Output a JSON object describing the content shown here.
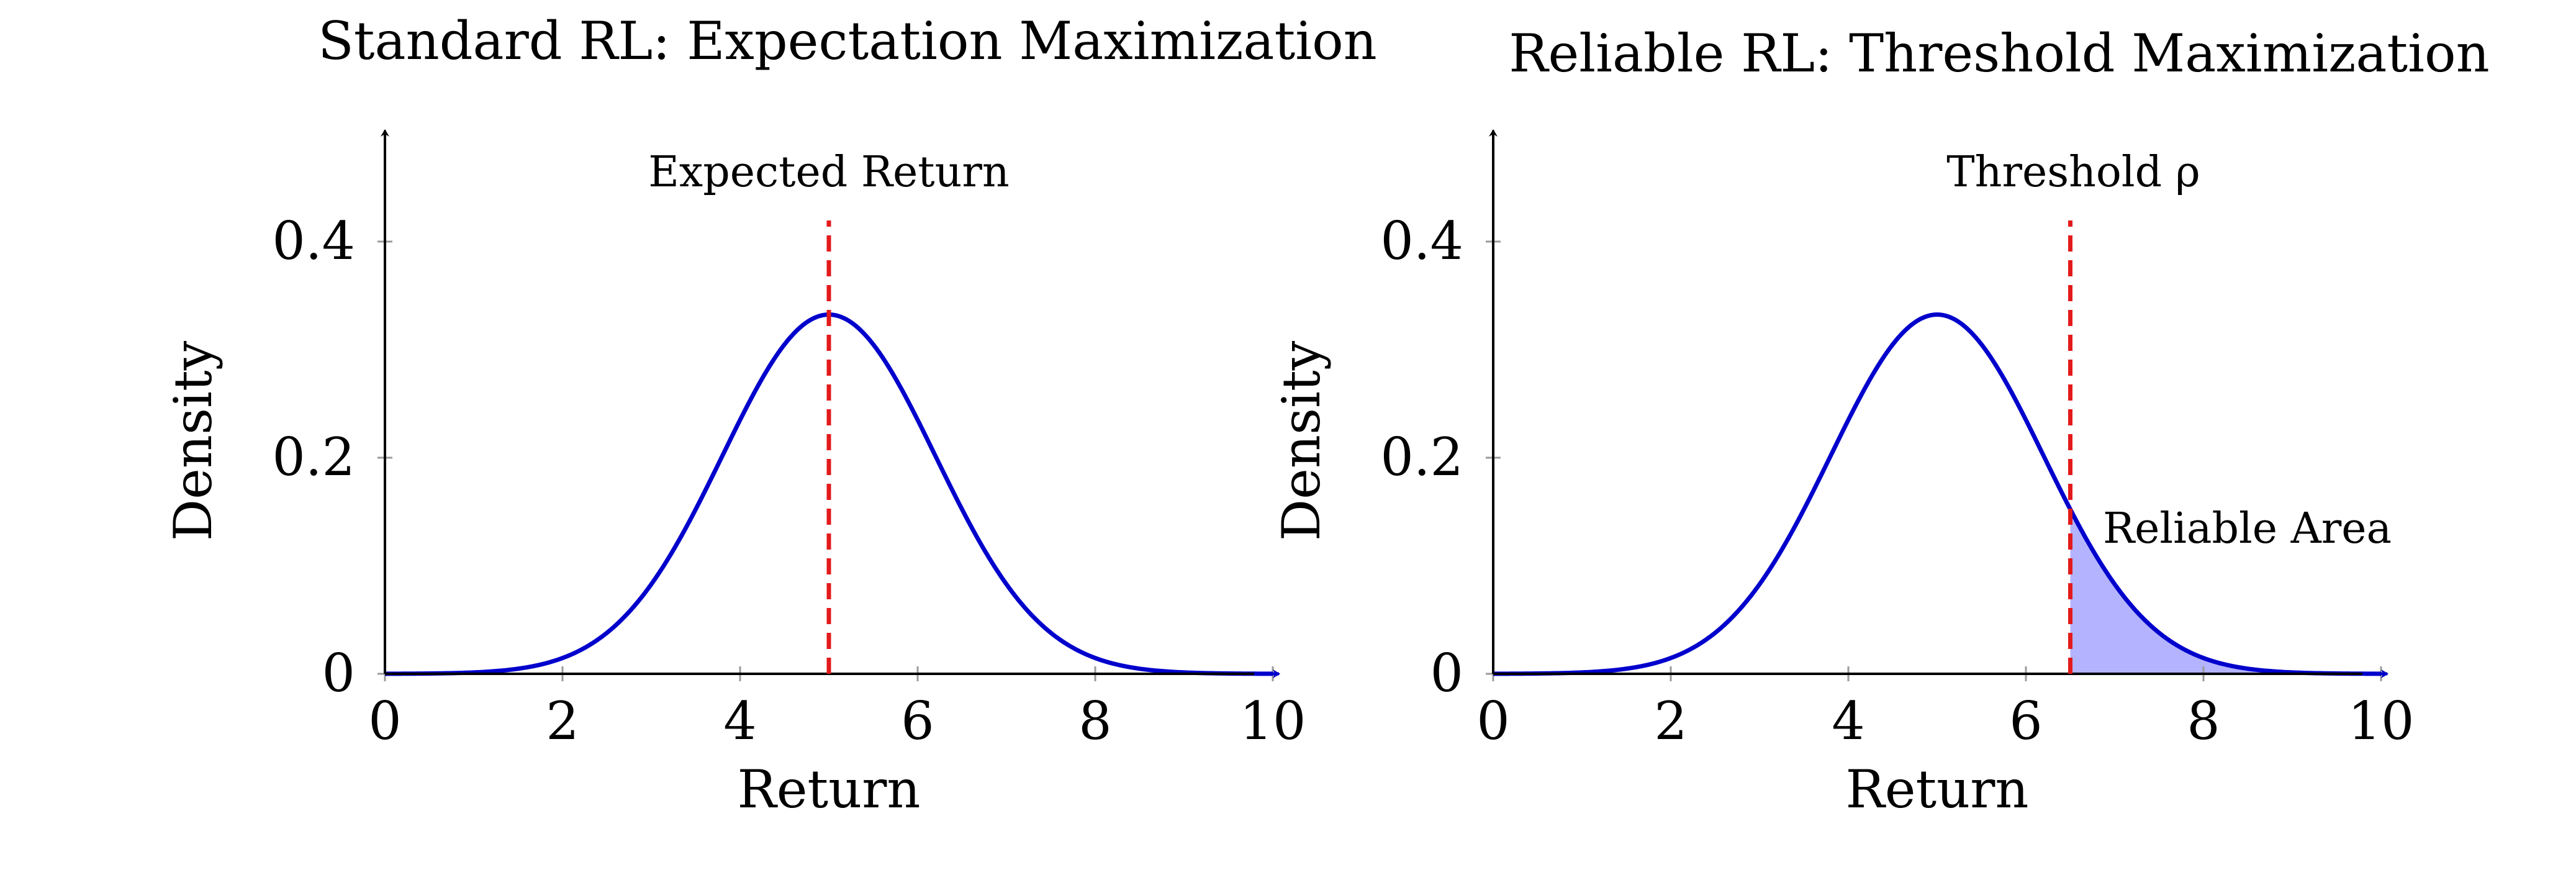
{
  "chart_data": [
    {
      "type": "line",
      "title": "Standard RL: Expectation Maximization",
      "xlabel": "Return",
      "ylabel": "Density",
      "xlim": [
        0,
        10
      ],
      "ylim": [
        0,
        0.5
      ],
      "xticks": [
        0,
        2,
        4,
        6,
        8,
        10
      ],
      "xtick_labels": [
        "0",
        "2",
        "4",
        "6",
        "8",
        "10"
      ],
      "yticks": [
        0,
        0.2,
        0.4
      ],
      "ytick_labels": [
        "0",
        "0.2",
        "0.4"
      ],
      "series": [
        {
          "distribution": "normal",
          "mean": 5,
          "std": 1.2,
          "x_range": [
            0,
            10
          ],
          "color": "#0000cc"
        }
      ],
      "vline": {
        "x": 5,
        "color": "#e31a1c",
        "style": "dashed",
        "label": "Expected Return"
      },
      "shade": null
    },
    {
      "type": "area",
      "title": "Reliable RL: Threshold Maximization",
      "xlabel": "Return",
      "ylabel": "Density",
      "xlim": [
        0,
        10
      ],
      "ylim": [
        0,
        0.5
      ],
      "xticks": [
        0,
        2,
        4,
        6,
        8,
        10
      ],
      "xtick_labels": [
        "0",
        "2",
        "4",
        "6",
        "8",
        "10"
      ],
      "yticks": [
        0,
        0.2,
        0.4
      ],
      "ytick_labels": [
        "0",
        "0.2",
        "0.4"
      ],
      "series": [
        {
          "distribution": "normal",
          "mean": 5,
          "std": 1.2,
          "x_range": [
            0,
            10
          ],
          "color": "#0000cc"
        }
      ],
      "vline": {
        "x": 6.5,
        "color": "#e31a1c",
        "style": "dashed",
        "label": "Threshold ρ"
      },
      "shade": {
        "from": 6.5,
        "to": 10,
        "color": "#b3b3ff",
        "label": "Reliable Area"
      }
    }
  ]
}
